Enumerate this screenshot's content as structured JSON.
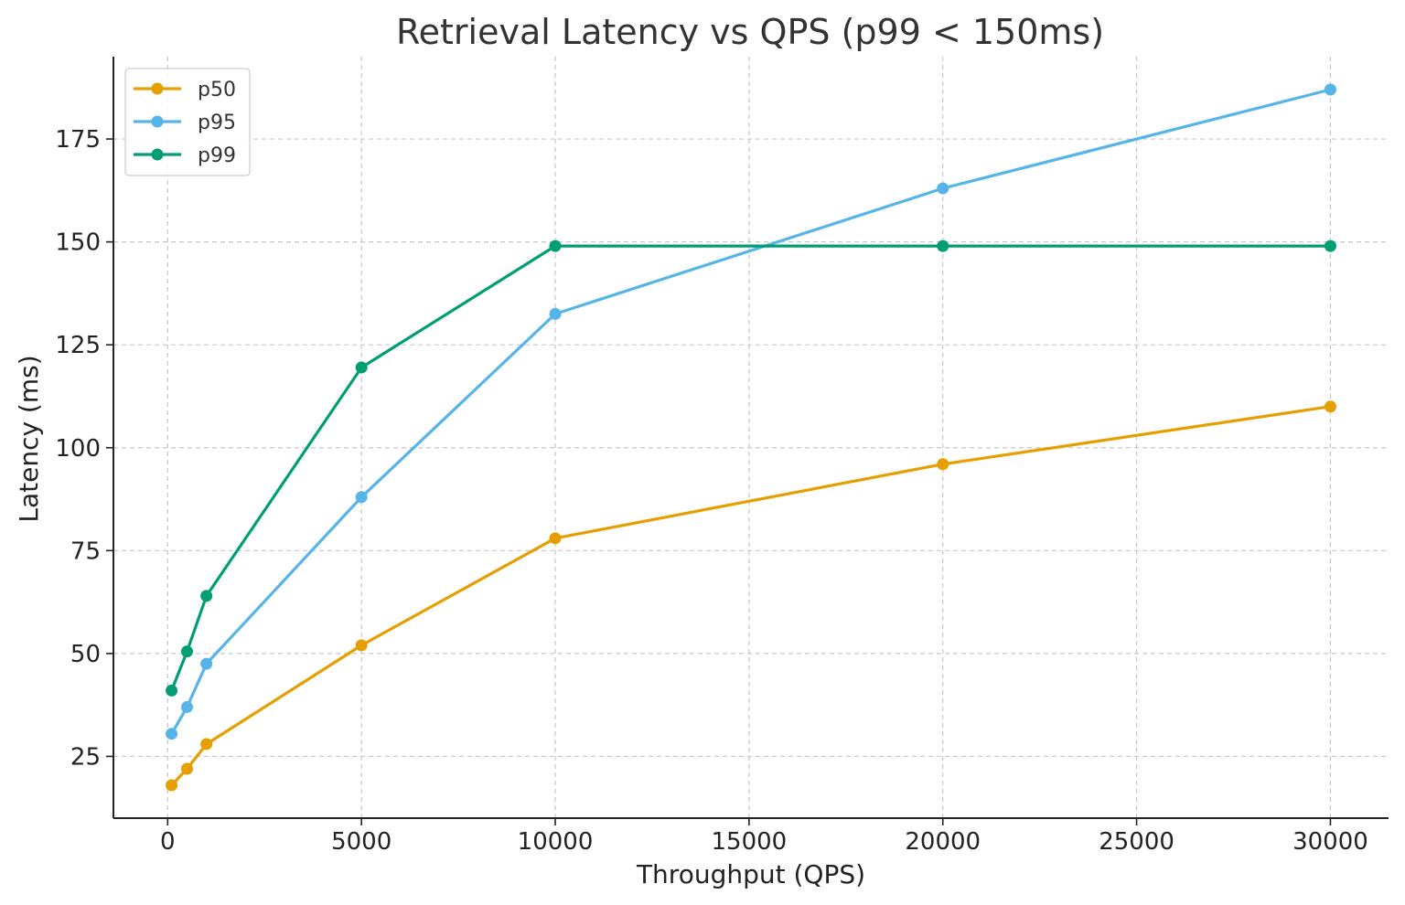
{
  "chart_data": {
    "type": "line",
    "title": "Retrieval Latency vs QPS (p99 < 150ms)",
    "xlabel": "Throughput (QPS)",
    "ylabel": "Latency (ms)",
    "x": [
      100,
      500,
      1000,
      5000,
      10000,
      20000,
      30000
    ],
    "xlim": [
      -1400,
      31500
    ],
    "ylim": [
      10,
      195
    ],
    "xticks": [
      0,
      5000,
      10000,
      15000,
      20000,
      25000,
      30000
    ],
    "xtick_labels": [
      "0",
      "5000",
      "10000",
      "15000",
      "20000",
      "25000",
      "30000"
    ],
    "yticks": [
      25,
      50,
      75,
      100,
      125,
      150,
      175
    ],
    "ytick_labels": [
      "25",
      "50",
      "75",
      "100",
      "125",
      "150",
      "175"
    ],
    "grid": true,
    "legend_position": "top-left",
    "series": [
      {
        "name": "p50",
        "color": "#E69F00",
        "values": [
          18,
          22,
          28,
          52,
          78,
          96,
          110
        ]
      },
      {
        "name": "p95",
        "color": "#56B4E9",
        "values": [
          30.5,
          37,
          47.5,
          88,
          132.5,
          163,
          187
        ]
      },
      {
        "name": "p99",
        "color": "#009E73",
        "values": [
          41,
          50.5,
          64,
          119.5,
          149,
          149,
          149
        ]
      }
    ]
  }
}
